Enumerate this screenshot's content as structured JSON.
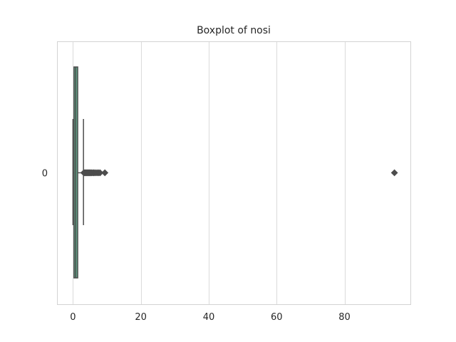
{
  "chart_data": {
    "type": "boxplot",
    "title": "Boxplot of nosi",
    "orientation": "horizontal",
    "categories": [
      "0"
    ],
    "xlim": [
      -4.7,
      99.4
    ],
    "xticks": [
      0,
      20,
      40,
      60,
      80
    ],
    "grid": "vertical",
    "box": {
      "whisker_low": 0,
      "q1": 0.3,
      "median": 0.8,
      "q3": 1.4,
      "whisker_high": 3.1
    },
    "outliers": [
      3.2,
      3.4,
      3.6,
      3.8,
      4.0,
      4.2,
      4.4,
      4.6,
      4.8,
      5.0,
      5.2,
      5.5,
      5.8,
      6.1,
      6.4,
      6.8,
      7.2,
      7.6,
      8.0,
      9.4,
      94.7
    ],
    "colors": {
      "box_fill": "#5fa588",
      "line": "#4d4d4d",
      "grid": "#dcdcdc",
      "axes": "#d3d3d3",
      "text": "#262626"
    }
  }
}
